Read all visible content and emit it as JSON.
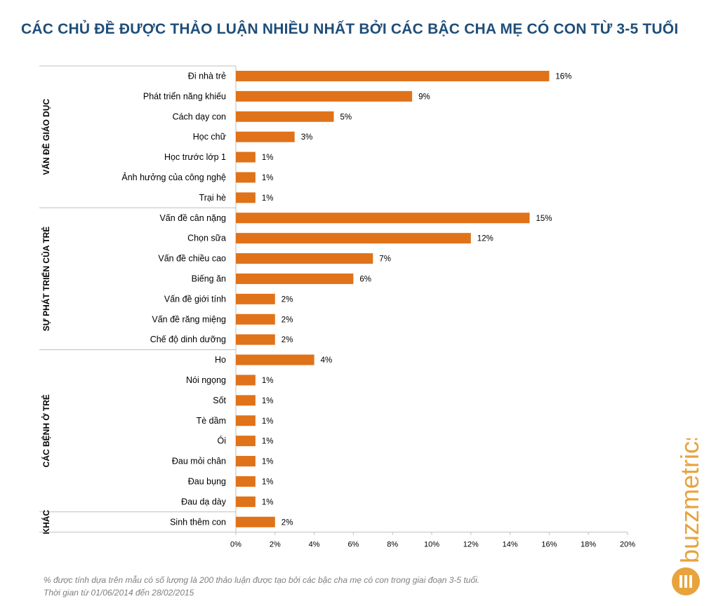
{
  "title": "CÁC CHỦ ĐỀ ĐƯỢC THẢO LUẬN NHIỀU NHẤT BỞI CÁC BẬC CHA MẸ CÓ CON TỪ 3-5 TUỔI",
  "colors": {
    "bar": "#e07219",
    "title": "#1f4e79",
    "logo": "#e8a33d"
  },
  "chart_data": {
    "type": "bar",
    "orientation": "horizontal",
    "categories": [
      "Đi nhà trẻ",
      "Phát triển năng khiếu",
      "Cách dạy con",
      "Học chữ",
      "Học trước lớp 1",
      "Ảnh hưởng của công nghệ",
      "Trại hè",
      "Vấn đề cân nặng",
      "Chọn sữa",
      "Vấn đề chiều cao",
      "Biếng ăn",
      "Vấn đề giới tính",
      "Vấn đề răng miệng",
      "Chế độ dinh dưỡng",
      "Ho",
      "Nói ngọng",
      "Sốt",
      "Tè dầm",
      "Ói",
      "Đau mỏi chân",
      "Đau bụng",
      "Đau dạ dày",
      "Sinh thêm con"
    ],
    "values": [
      16,
      9,
      5,
      3,
      1,
      1,
      1,
      15,
      12,
      7,
      6,
      2,
      2,
      2,
      4,
      1,
      1,
      1,
      1,
      1,
      1,
      1,
      2
    ],
    "data_labels": [
      "16%",
      "9%",
      "5%",
      "3%",
      "1%",
      "1%",
      "1%",
      "15%",
      "12%",
      "7%",
      "6%",
      "2%",
      "2%",
      "2%",
      "4%",
      "1%",
      "1%",
      "1%",
      "1%",
      "1%",
      "1%",
      "1%",
      "2%"
    ],
    "groups": [
      {
        "name": "VẤN ĐỀ GIÁO DỤC",
        "count": 7
      },
      {
        "name": "SỰ PHÁT TRIỂN CỦA TRẺ",
        "count": 7
      },
      {
        "name": "CÁC BỆNH Ở TRẺ",
        "count": 8
      },
      {
        "name": "KHÁC",
        "count": 1
      }
    ],
    "xlim": [
      0,
      20
    ],
    "xticks": [
      0,
      2,
      4,
      6,
      8,
      10,
      12,
      14,
      16,
      18,
      20
    ],
    "xtick_labels": [
      "0%",
      "2%",
      "4%",
      "6%",
      "8%",
      "10%",
      "12%",
      "14%",
      "16%",
      "18%",
      "20%"
    ],
    "grid": false,
    "legend": "none"
  },
  "footnote": {
    "line1": "% được tính dựa trên mẫu có số lượng là 200 thảo luận được tạo bởi các bậc cha mẹ có con trong giai đoạn 3-5 tuổi.",
    "line2": "Thời gian từ 01/06/2014 đến 28/02/2015"
  },
  "logo": {
    "text": "buzzmetrics",
    "icon": "buzzmetrics-logo-icon"
  }
}
